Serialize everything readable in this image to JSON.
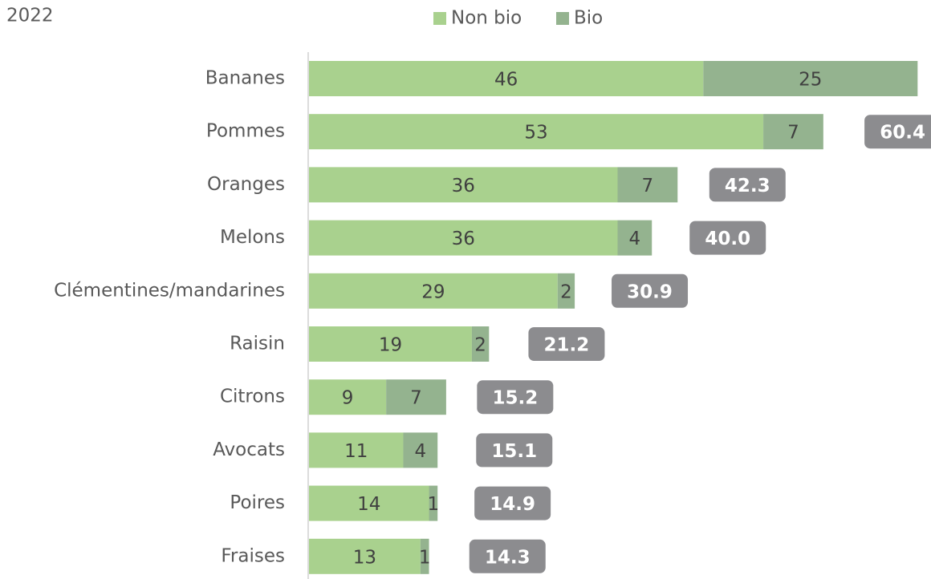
{
  "chart_data": {
    "type": "stacked_barh",
    "title": "2022",
    "categories": [
      "Bananes",
      "Pommes",
      "Oranges",
      "Melons",
      "Clémentines/mandarines",
      "Raisin",
      "Citrons",
      "Avocats",
      "Poires",
      "Fraises"
    ],
    "series": [
      {
        "name": "Non bio",
        "color": "#a9d18e",
        "values": [
          46,
          53,
          36,
          36,
          29,
          19,
          9,
          11,
          14,
          13
        ]
      },
      {
        "name": "Bio",
        "color": "#94b38f",
        "values": [
          25,
          7,
          7,
          4,
          2,
          2,
          7,
          4,
          1,
          1
        ]
      }
    ],
    "totals": {
      "color": "#8c8c8f",
      "values": [
        null,
        60.4,
        42.3,
        40.0,
        30.9,
        21.2,
        15.2,
        15.1,
        14.9,
        14.3
      ],
      "value_labels": [
        null,
        "60.4",
        "42.3",
        "40.0",
        "30.9",
        "21.2",
        "15.2",
        "15.1",
        "14.9",
        "14.3"
      ]
    },
    "xlim": [
      0,
      72
    ],
    "legend": "top"
  }
}
